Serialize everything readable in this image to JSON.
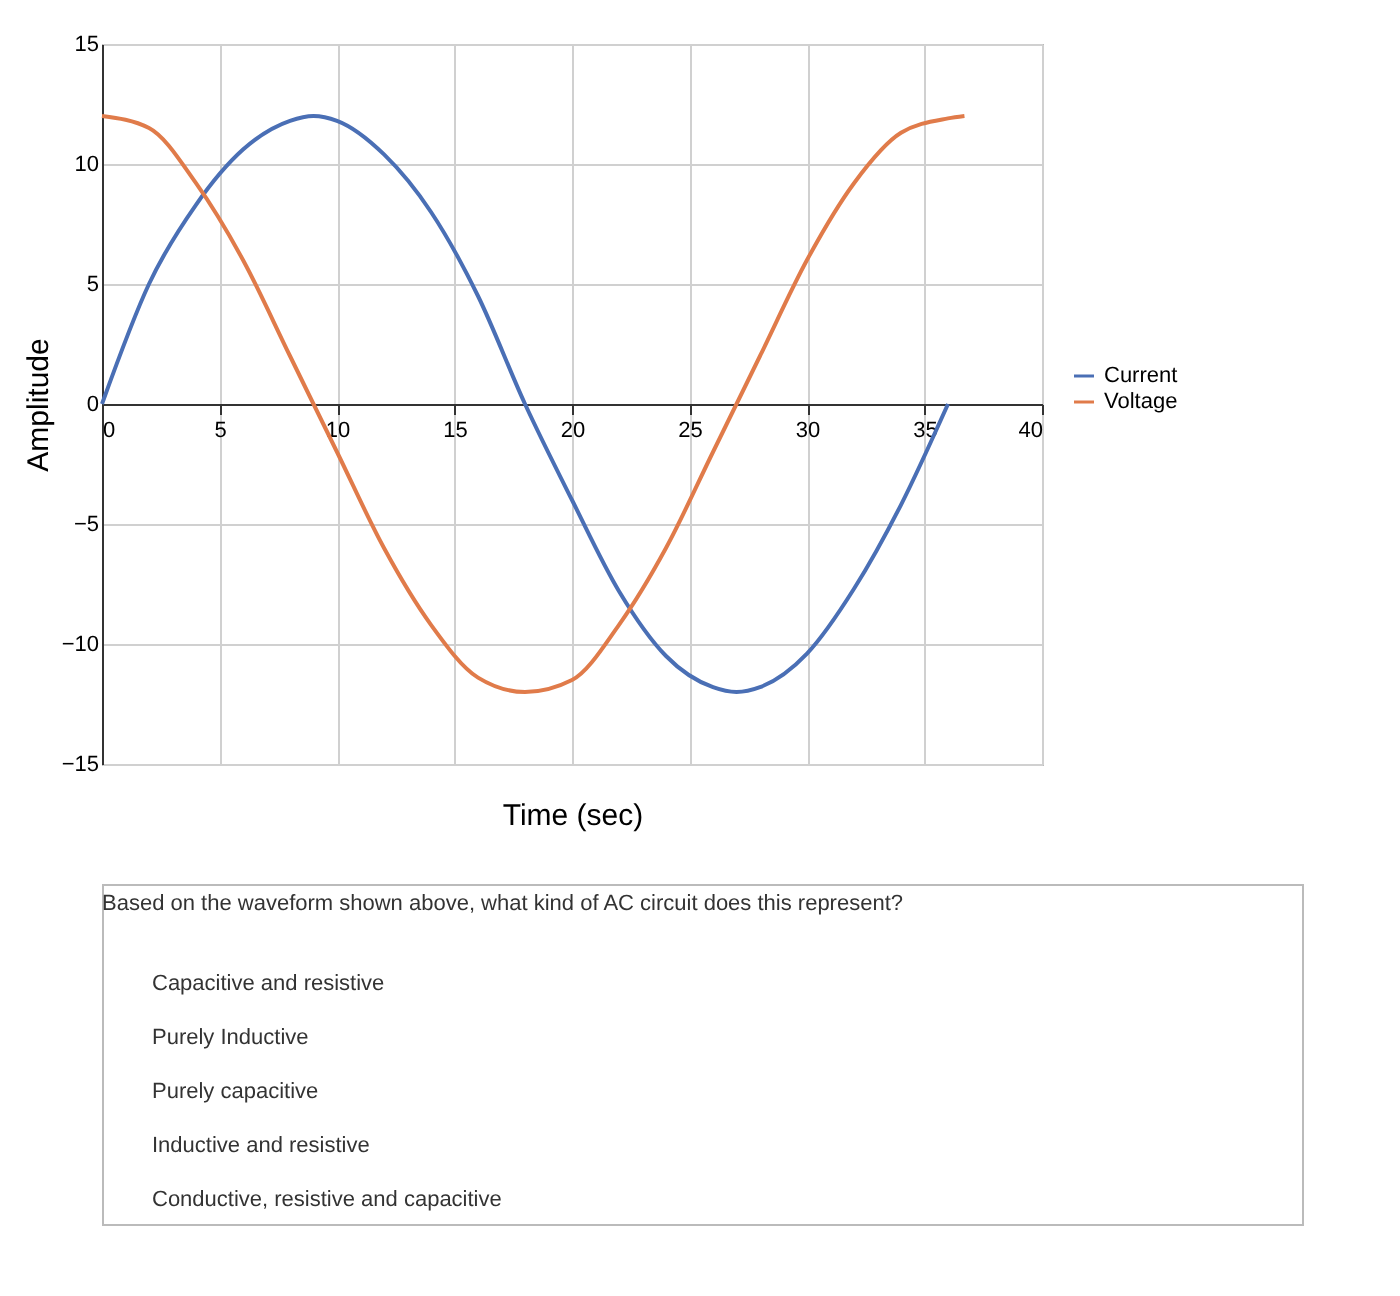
{
  "chart_data": {
    "type": "line",
    "xlabel": "Time (sec)",
    "ylabel": "Amplitude",
    "xlim": [
      0,
      40
    ],
    "xticks": [
      0,
      5,
      10,
      15,
      20,
      25,
      30,
      35,
      40
    ],
    "ylim": [
      -15,
      15
    ],
    "yticks": [
      -15,
      -10,
      -5,
      0,
      5,
      10,
      15
    ],
    "grid": true,
    "legend": "right",
    "marker": "none",
    "line_style": "solid",
    "series": [
      {
        "name": "Current",
        "color": "#4a6fb5",
        "x": [
          0,
          2,
          4,
          6,
          8,
          9,
          10,
          12,
          14,
          16,
          18,
          20,
          22,
          24,
          26,
          27,
          28,
          30,
          32,
          34,
          36
        ],
        "values": [
          0,
          5,
          8.3,
          10.6,
          11.8,
          12,
          11.8,
          10.4,
          8,
          4.5,
          0,
          -4,
          -7.8,
          -10.5,
          -11.8,
          -12,
          -11.8,
          -10.4,
          -7.7,
          -4.2,
          0
        ]
      },
      {
        "name": "Voltage",
        "color": "#e07b4a",
        "x": [
          0,
          2,
          4,
          6,
          8,
          9,
          10,
          12,
          14,
          16,
          18,
          20,
          22,
          24,
          26,
          27,
          28,
          30,
          32,
          34,
          36,
          36.7
        ],
        "values": [
          12,
          11.5,
          9.2,
          6,
          2,
          0,
          -2,
          -6,
          -9.2,
          -11.4,
          -12,
          -11.5,
          -9.2,
          -6,
          -2,
          0,
          2,
          6,
          9.2,
          11.3,
          11.9,
          12
        ]
      }
    ],
    "annotations": [
      "Based on the waveform shown above, what kind of AC circuit does this represent?",
      "Capacitive and resistive",
      "Purely Inductive",
      "Purely capacitive",
      "Inductive and resistive",
      "Conductive, resistive and capacitive"
    ]
  }
}
